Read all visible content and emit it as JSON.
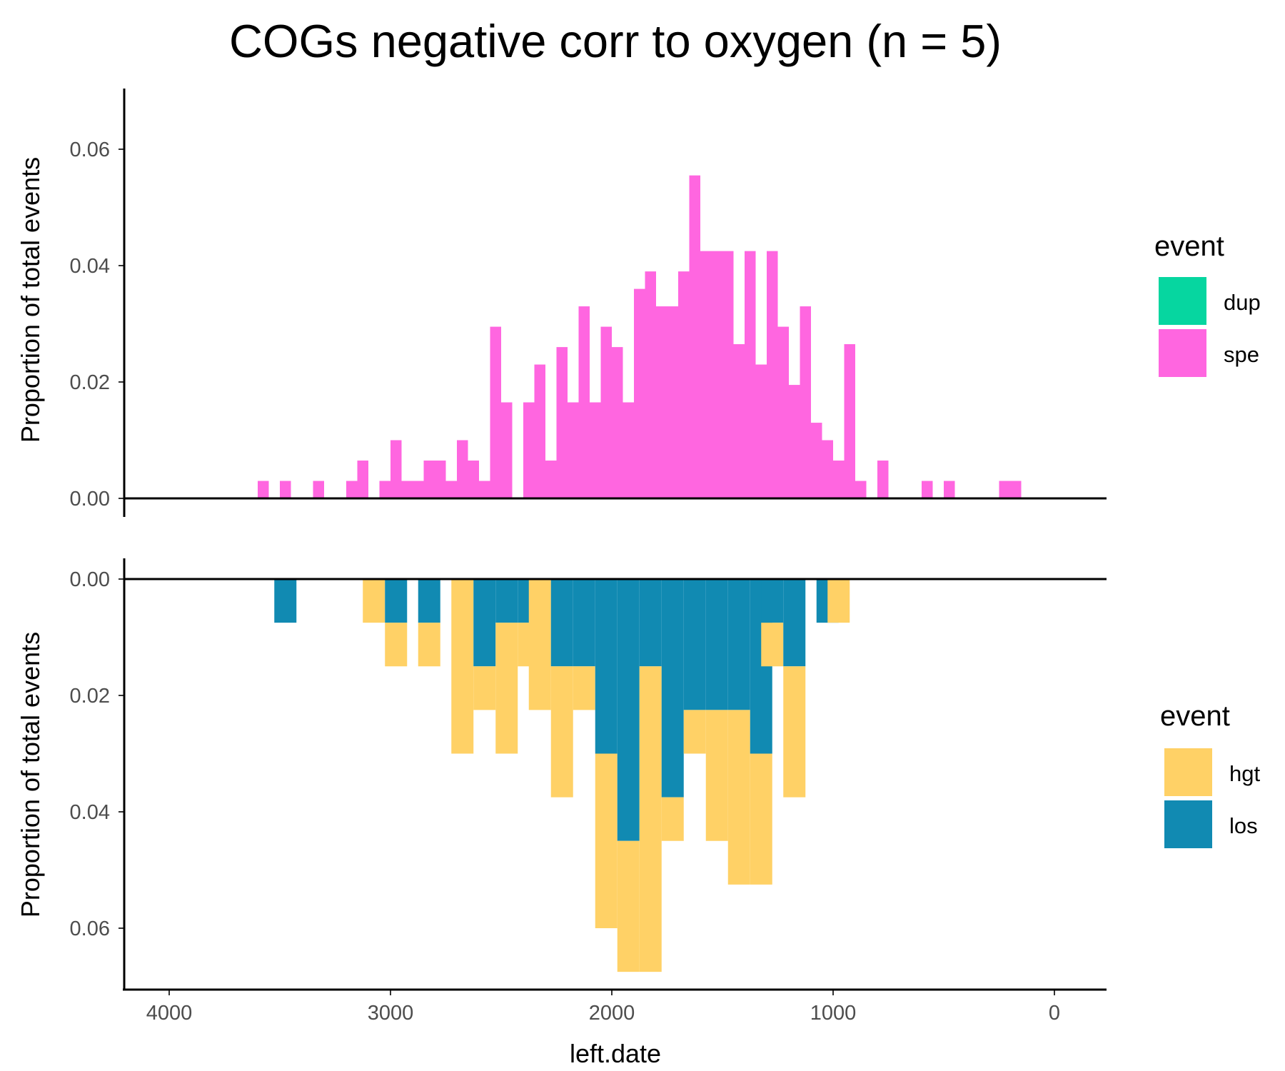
{
  "title": "COGs negative corr to oxygen (n = 5)",
  "chart_data": [
    {
      "type": "bar",
      "stacked": true,
      "ylabel": "Proportion of total events",
      "xlabel": "",
      "xlim": [
        4200,
        -200
      ],
      "x_reversed": true,
      "ylim": [
        0,
        0.07
      ],
      "y_ticks": [
        "0.00",
        "0.02",
        "0.04",
        "0.06"
      ],
      "bin_width": 50,
      "x": [
        3575,
        3475,
        3325,
        3175,
        3125,
        3025,
        2975,
        2925,
        2875,
        2825,
        2775,
        2725,
        2675,
        2625,
        2575,
        2525,
        2475,
        2375,
        2325,
        2275,
        2225,
        2175,
        2125,
        2075,
        2025,
        1975,
        1925,
        1875,
        1825,
        1775,
        1725,
        1675,
        1625,
        1575,
        1525,
        1475,
        1425,
        1375,
        1325,
        1275,
        1225,
        1175,
        1125,
        1075,
        1025,
        975,
        925,
        875,
        775,
        575,
        475,
        225,
        175
      ],
      "series": [
        {
          "name": "dup",
          "values": [
            0,
            0,
            0,
            0,
            0,
            0,
            0,
            0,
            0,
            0,
            0,
            0,
            0,
            0,
            0,
            0,
            0,
            0,
            0,
            0,
            0,
            0,
            0,
            0,
            0,
            0,
            0,
            0,
            0,
            0,
            0,
            0,
            0,
            0,
            0,
            0,
            0,
            0,
            0,
            0,
            0,
            0,
            0,
            0,
            0,
            0,
            0,
            0,
            0,
            0,
            0,
            0,
            0
          ]
        },
        {
          "name": "spe",
          "values": [
            0.003,
            0.003,
            0.003,
            0.003,
            0.0065,
            0.003,
            0.01,
            0.003,
            0.003,
            0.0065,
            0.0065,
            0.003,
            0.01,
            0.0065,
            0.003,
            0.0295,
            0.0165,
            0.0165,
            0.023,
            0.0065,
            0.026,
            0.0165,
            0.033,
            0.0165,
            0.0295,
            0.026,
            0.0165,
            0.036,
            0.039,
            0.033,
            0.033,
            0.039,
            0.0555,
            0.0425,
            0.0425,
            0.0425,
            0.0265,
            0.0425,
            0.023,
            0.0425,
            0.0295,
            0.0195,
            0.033,
            0.013,
            0.01,
            0.0065,
            0.0265,
            0.003,
            0.0065,
            0.003,
            0.003,
            0.003,
            0.003
          ]
        }
      ],
      "legend_title": "event",
      "legend_position": "right",
      "colors": {
        "dup": "#06d6a0",
        "spe": "#ff66e0"
      }
    },
    {
      "type": "bar",
      "stacked": true,
      "inverted_y": true,
      "ylabel": "Proportion of total events",
      "xlabel": "left.date",
      "xlim": [
        4200,
        -200
      ],
      "x_reversed": true,
      "ylim": [
        0,
        0.07
      ],
      "y_ticks": [
        "0.00",
        "0.02",
        "0.04",
        "0.06"
      ],
      "x_ticks": [
        "4000",
        "3000",
        "2000",
        "1000",
        "0"
      ],
      "x_tick_values": [
        4000,
        3000,
        2000,
        1000,
        0
      ],
      "bin_width": 100,
      "x": [
        3475,
        3075,
        2975,
        2825,
        2675,
        2575,
        2475,
        2375,
        2325,
        2225,
        2125,
        2025,
        1925,
        1825,
        1725,
        1625,
        1525,
        1425,
        1325,
        1275,
        1175,
        1025,
        975
      ],
      "series": [
        {
          "name": "hgt",
          "values": [
            0,
            0.0075,
            0.0075,
            0.0075,
            0.03,
            0.0075,
            0.0225,
            0.0075,
            0.0225,
            0.0225,
            0.0075,
            0.03,
            0.0225,
            0.0525,
            0.0075,
            0.0075,
            0.0225,
            0.03,
            0.0225,
            0.0075,
            0.0225,
            0,
            0.0075
          ]
        },
        {
          "name": "los",
          "values": [
            0.0075,
            0,
            0.0075,
            0.0075,
            0,
            0.015,
            0.0075,
            0.0075,
            0,
            0.015,
            0.015,
            0.03,
            0.045,
            0.015,
            0.0375,
            0.0225,
            0.0225,
            0.0225,
            0.03,
            0.0075,
            0.015,
            0.0075,
            0
          ]
        }
      ],
      "legend_title": "event",
      "legend_position": "right",
      "colors": {
        "hgt": "#ffd166",
        "los": "#118ab2"
      }
    }
  ]
}
